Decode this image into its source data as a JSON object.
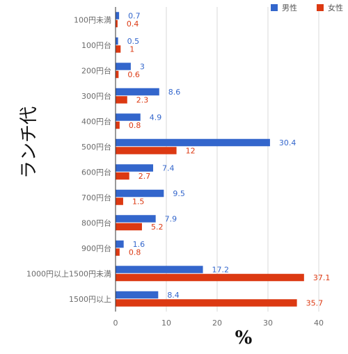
{
  "chart_data": {
    "type": "bar",
    "orientation": "horizontal",
    "ylabel": "ランチ代",
    "xlabel": "%",
    "xlim": [
      0,
      40
    ],
    "xticks": [
      0,
      10,
      20,
      30,
      40
    ],
    "grid": true,
    "legend_position": "top-right",
    "categories": [
      "100円未満",
      "100円台",
      "200円台",
      "300円台",
      "400円台",
      "500円台",
      "600円台",
      "700円台",
      "800円台",
      "900円台",
      "1000円以上1500円未満",
      "1500円以上"
    ],
    "series": [
      {
        "name": "男性",
        "color": "#3366cc",
        "values": [
          0.7,
          0.5,
          3,
          8.6,
          4.9,
          30.4,
          7.4,
          9.5,
          7.9,
          1.6,
          17.2,
          8.4
        ]
      },
      {
        "name": "女性",
        "color": "#dc3912",
        "values": [
          0.4,
          1,
          0.6,
          2.3,
          0.8,
          12,
          2.7,
          1.5,
          5.2,
          0.8,
          37.1,
          35.7
        ]
      }
    ]
  }
}
